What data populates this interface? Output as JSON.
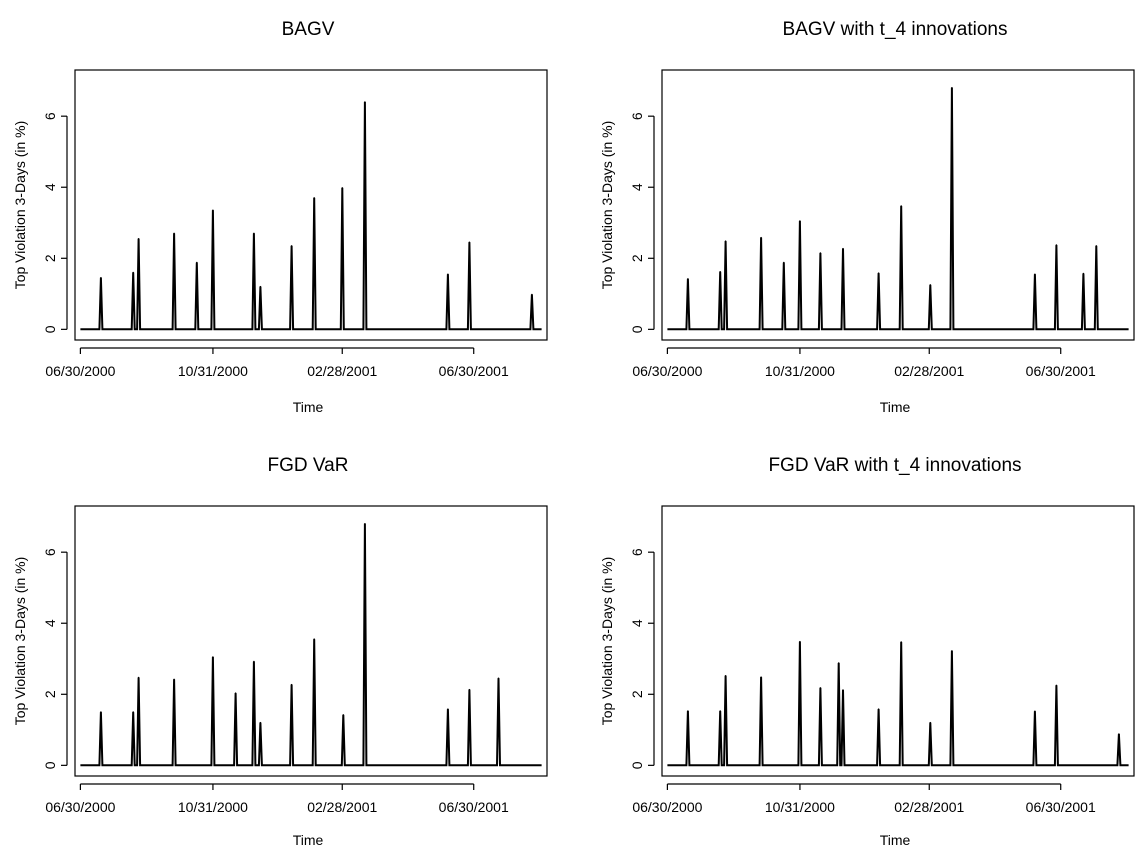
{
  "chart_data": [
    {
      "type": "line",
      "title": "BAGV",
      "xlabel": "Time",
      "ylabel": "Top Violation 3-Days (in %)",
      "x_ticks": [
        "06/30/2000",
        "10/31/2000",
        "02/28/2001",
        "06/30/2001"
      ],
      "y_ticks": [
        "0",
        "2",
        "4",
        "6"
      ],
      "xlim": [
        "2000-06-25",
        "2001-09-06"
      ],
      "ylim": [
        -0.3,
        7.3
      ],
      "series": [
        {
          "spikes": [
            {
              "date": "2000-07-19",
              "value": 1.45
            },
            {
              "date": "2000-08-18",
              "value": 1.6
            },
            {
              "date": "2000-08-23",
              "value": 2.55
            },
            {
              "date": "2000-09-25",
              "value": 2.7
            },
            {
              "date": "2000-10-16",
              "value": 1.88
            },
            {
              "date": "2000-10-31",
              "value": 3.35
            },
            {
              "date": "2000-12-08",
              "value": 2.7
            },
            {
              "date": "2000-12-14",
              "value": 1.2
            },
            {
              "date": "2001-01-12",
              "value": 2.35
            },
            {
              "date": "2001-02-02",
              "value": 3.7
            },
            {
              "date": "2001-02-28",
              "value": 3.98
            },
            {
              "date": "2001-03-21",
              "value": 6.4
            },
            {
              "date": "2001-06-06",
              "value": 1.55
            },
            {
              "date": "2001-06-26",
              "value": 2.45
            },
            {
              "date": "2001-08-23",
              "value": 0.98
            }
          ]
        }
      ]
    },
    {
      "type": "line",
      "title": "BAGV with t_4 innovations",
      "xlabel": "Time",
      "ylabel": "Top Violation 3-Days (in %)",
      "x_ticks": [
        "06/30/2000",
        "10/31/2000",
        "02/28/2001",
        "06/30/2001"
      ],
      "y_ticks": [
        "0",
        "2",
        "4",
        "6"
      ],
      "xlim": [
        "2000-06-25",
        "2001-09-06"
      ],
      "ylim": [
        -0.3,
        7.3
      ],
      "series": [
        {
          "spikes": [
            {
              "date": "2000-07-19",
              "value": 1.42
            },
            {
              "date": "2000-08-18",
              "value": 1.62
            },
            {
              "date": "2000-08-23",
              "value": 2.48
            },
            {
              "date": "2000-09-25",
              "value": 2.58
            },
            {
              "date": "2000-10-16",
              "value": 1.88
            },
            {
              "date": "2000-10-31",
              "value": 3.05
            },
            {
              "date": "2000-11-19",
              "value": 2.15
            },
            {
              "date": "2000-12-10",
              "value": 2.27
            },
            {
              "date": "2001-01-12",
              "value": 1.58
            },
            {
              "date": "2001-02-02",
              "value": 3.47
            },
            {
              "date": "2001-03-01",
              "value": 1.25
            },
            {
              "date": "2001-03-21",
              "value": 6.8
            },
            {
              "date": "2001-06-06",
              "value": 1.55
            },
            {
              "date": "2001-06-26",
              "value": 2.37
            },
            {
              "date": "2001-07-21",
              "value": 1.57
            },
            {
              "date": "2001-08-02",
              "value": 2.35
            }
          ]
        }
      ]
    },
    {
      "type": "line",
      "title": "FGD VaR",
      "xlabel": "Time",
      "ylabel": "Top Violation 3-Days (in %)",
      "x_ticks": [
        "06/30/2000",
        "10/31/2000",
        "02/28/2001",
        "06/30/2001"
      ],
      "y_ticks": [
        "0",
        "2",
        "4",
        "6"
      ],
      "xlim": [
        "2000-06-25",
        "2001-09-06"
      ],
      "ylim": [
        -0.3,
        7.3
      ],
      "series": [
        {
          "spikes": [
            {
              "date": "2000-07-19",
              "value": 1.5
            },
            {
              "date": "2000-08-18",
              "value": 1.5
            },
            {
              "date": "2000-08-23",
              "value": 2.47
            },
            {
              "date": "2000-09-25",
              "value": 2.42
            },
            {
              "date": "2000-10-31",
              "value": 3.05
            },
            {
              "date": "2000-11-21",
              "value": 2.03
            },
            {
              "date": "2000-12-08",
              "value": 2.92
            },
            {
              "date": "2000-12-14",
              "value": 1.2
            },
            {
              "date": "2001-01-12",
              "value": 2.27
            },
            {
              "date": "2001-02-02",
              "value": 3.55
            },
            {
              "date": "2001-03-01",
              "value": 1.42
            },
            {
              "date": "2001-03-21",
              "value": 6.8
            },
            {
              "date": "2001-06-06",
              "value": 1.58
            },
            {
              "date": "2001-06-26",
              "value": 2.13
            },
            {
              "date": "2001-07-23",
              "value": 2.45
            }
          ]
        }
      ]
    },
    {
      "type": "line",
      "title": "FGD VaR with t_4 innovations",
      "xlabel": "Time",
      "ylabel": "Top Violation 3-Days (in %)",
      "x_ticks": [
        "06/30/2000",
        "10/31/2000",
        "02/28/2001",
        "06/30/2001"
      ],
      "y_ticks": [
        "0",
        "2",
        "4",
        "6"
      ],
      "xlim": [
        "2000-06-25",
        "2001-09-06"
      ],
      "ylim": [
        -0.3,
        7.3
      ],
      "series": [
        {
          "spikes": [
            {
              "date": "2000-07-19",
              "value": 1.53
            },
            {
              "date": "2000-08-18",
              "value": 1.53
            },
            {
              "date": "2000-08-23",
              "value": 2.52
            },
            {
              "date": "2000-09-25",
              "value": 2.48
            },
            {
              "date": "2000-10-31",
              "value": 3.48
            },
            {
              "date": "2000-11-19",
              "value": 2.18
            },
            {
              "date": "2000-12-06",
              "value": 2.88
            },
            {
              "date": "2000-12-10",
              "value": 2.12
            },
            {
              "date": "2001-01-12",
              "value": 1.58
            },
            {
              "date": "2001-02-02",
              "value": 3.47
            },
            {
              "date": "2001-03-01",
              "value": 1.2
            },
            {
              "date": "2001-03-21",
              "value": 3.22
            },
            {
              "date": "2001-06-06",
              "value": 1.52
            },
            {
              "date": "2001-06-26",
              "value": 2.25
            },
            {
              "date": "2001-08-23",
              "value": 0.88
            }
          ]
        }
      ]
    }
  ]
}
